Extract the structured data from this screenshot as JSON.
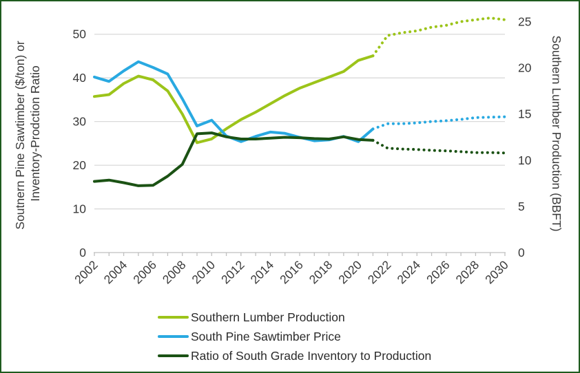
{
  "chart_data": {
    "type": "line",
    "title": "",
    "grid": "horizontal",
    "legend_position": "bottom-left",
    "x_years": [
      2002,
      2003,
      2004,
      2005,
      2006,
      2007,
      2008,
      2009,
      2010,
      2011,
      2012,
      2013,
      2014,
      2015,
      2016,
      2017,
      2018,
      2019,
      2020,
      2021,
      2022,
      2023,
      2024,
      2025,
      2026,
      2027,
      2028,
      2029,
      2030
    ],
    "x_tick_labels": [
      "2002",
      "2004",
      "2006",
      "2008",
      "2010",
      "2012",
      "2014",
      "2016",
      "2018",
      "2020",
      "2022",
      "2024",
      "2026",
      "2028",
      "2030"
    ],
    "projection_start_year": 2021,
    "left_axis": {
      "label_line1": "Soutnern Pine Sawtimber ($/ton) or",
      "label_line2": "Inventory-Prodction Ratio",
      "ticks": [
        "0",
        "10",
        "20",
        "30",
        "40",
        "50"
      ],
      "tick_values": [
        0,
        10,
        20,
        30,
        40,
        50
      ],
      "range": [
        0,
        55
      ]
    },
    "right_axis": {
      "label": "Southern Lumber Production (BBFT)",
      "ticks": [
        "0",
        "5",
        "10",
        "15",
        "20",
        "25"
      ],
      "tick_values": [
        0,
        5,
        10,
        15,
        20,
        25
      ],
      "range": [
        0,
        26
      ]
    },
    "series": [
      {
        "name": "Southern Lumber Production",
        "axis": "right",
        "unit": "BBFT",
        "color": "#9CC41A",
        "values": [
          16.9,
          17.1,
          18.3,
          19.1,
          18.7,
          17.5,
          15.0,
          11.9,
          12.3,
          13.4,
          14.4,
          15.2,
          16.1,
          17.0,
          17.8,
          18.4,
          19.0,
          19.6,
          20.8,
          21.3,
          23.5,
          23.8,
          24.0,
          24.4,
          24.6,
          25.0,
          25.2,
          25.4,
          25.2
        ]
      },
      {
        "name": "South Pine Sawtimber Price",
        "axis": "left",
        "unit": "$/ton",
        "color": "#29A9E1",
        "values": [
          40.2,
          39.2,
          41.6,
          43.7,
          42.4,
          40.9,
          35.2,
          29.0,
          30.3,
          26.7,
          25.4,
          26.6,
          27.6,
          27.3,
          26.4,
          25.6,
          25.8,
          26.6,
          25.4,
          28.3,
          29.5,
          29.5,
          29.7,
          30.0,
          30.2,
          30.5,
          30.9,
          31.0,
          31.1
        ]
      },
      {
        "name": "Ratio of South Grade Inventory to Production",
        "axis": "left",
        "unit": "ratio",
        "color": "#1B5214",
        "values": [
          16.3,
          16.6,
          16.0,
          15.3,
          15.4,
          17.5,
          20.2,
          27.2,
          27.4,
          26.5,
          26.0,
          26.0,
          26.2,
          26.4,
          26.3,
          26.1,
          26.0,
          26.5,
          25.9,
          25.7,
          23.9,
          23.7,
          23.6,
          23.4,
          23.3,
          23.1,
          22.9,
          22.9,
          22.8
        ]
      }
    ],
    "styles": {
      "grid_color": "#D9D9D9",
      "axis_color": "#BFBFBF",
      "text_color": "#3A3A3A",
      "border_color": "#1E5B1E",
      "background": "#FFFFFF"
    }
  }
}
